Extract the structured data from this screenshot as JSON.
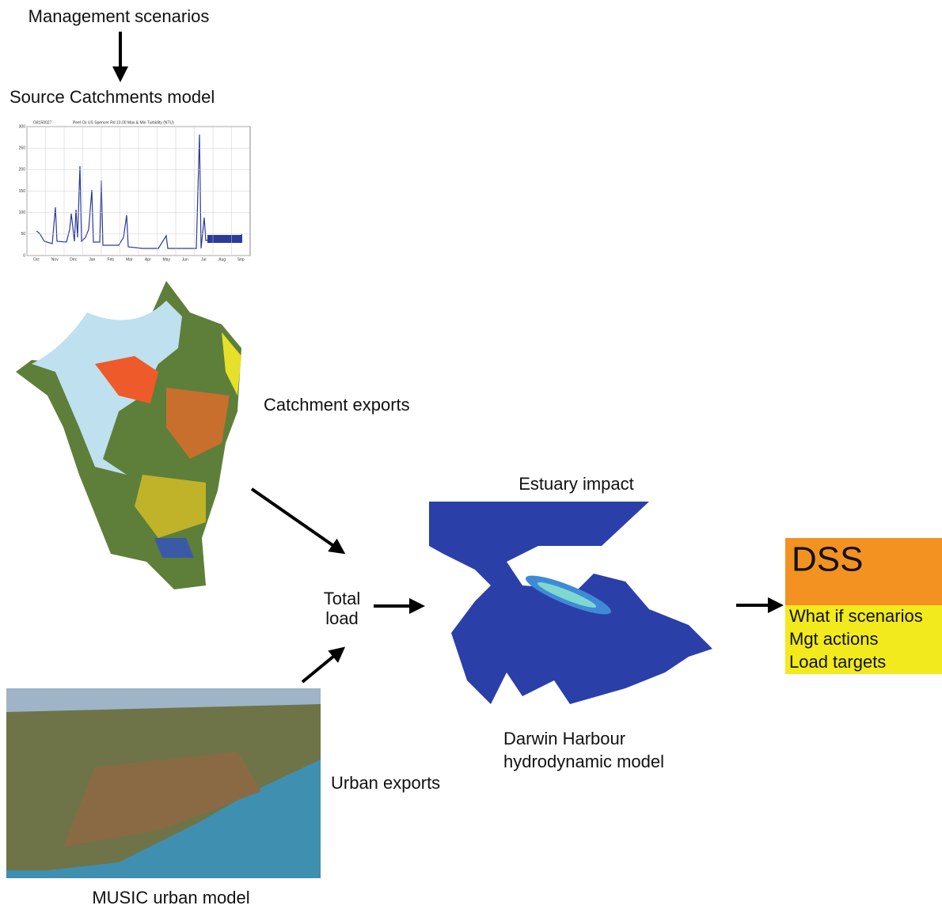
{
  "header": {
    "input": "Management scenarios",
    "model": "Source Catchments model"
  },
  "mini_chart": {
    "legend": "G8150027",
    "title": "Peel Ck US Spencer Rd 10.00 Max & Min Turbidity (NTU)",
    "yticks": [
      0,
      50,
      100,
      150,
      200,
      250,
      300
    ],
    "months": [
      "Oct",
      "Nov",
      "Dec",
      "Jan",
      "Feb",
      "Mar",
      "Apr",
      "May",
      "Jun",
      "Jul",
      "Aug",
      "Sep"
    ]
  },
  "labels": {
    "catchment": "Catchment exports",
    "total_load": [
      "Total",
      "load"
    ],
    "urban": "Urban exports",
    "urban_model": "MUSIC urban model",
    "estuary": "Estuary impact",
    "harbour_model": [
      "Darwin Harbour",
      "hydrodynamic model"
    ]
  },
  "dss": {
    "title": "DSS",
    "items": [
      "What if scenarios",
      "Mgt actions",
      "Load targets"
    ]
  }
}
